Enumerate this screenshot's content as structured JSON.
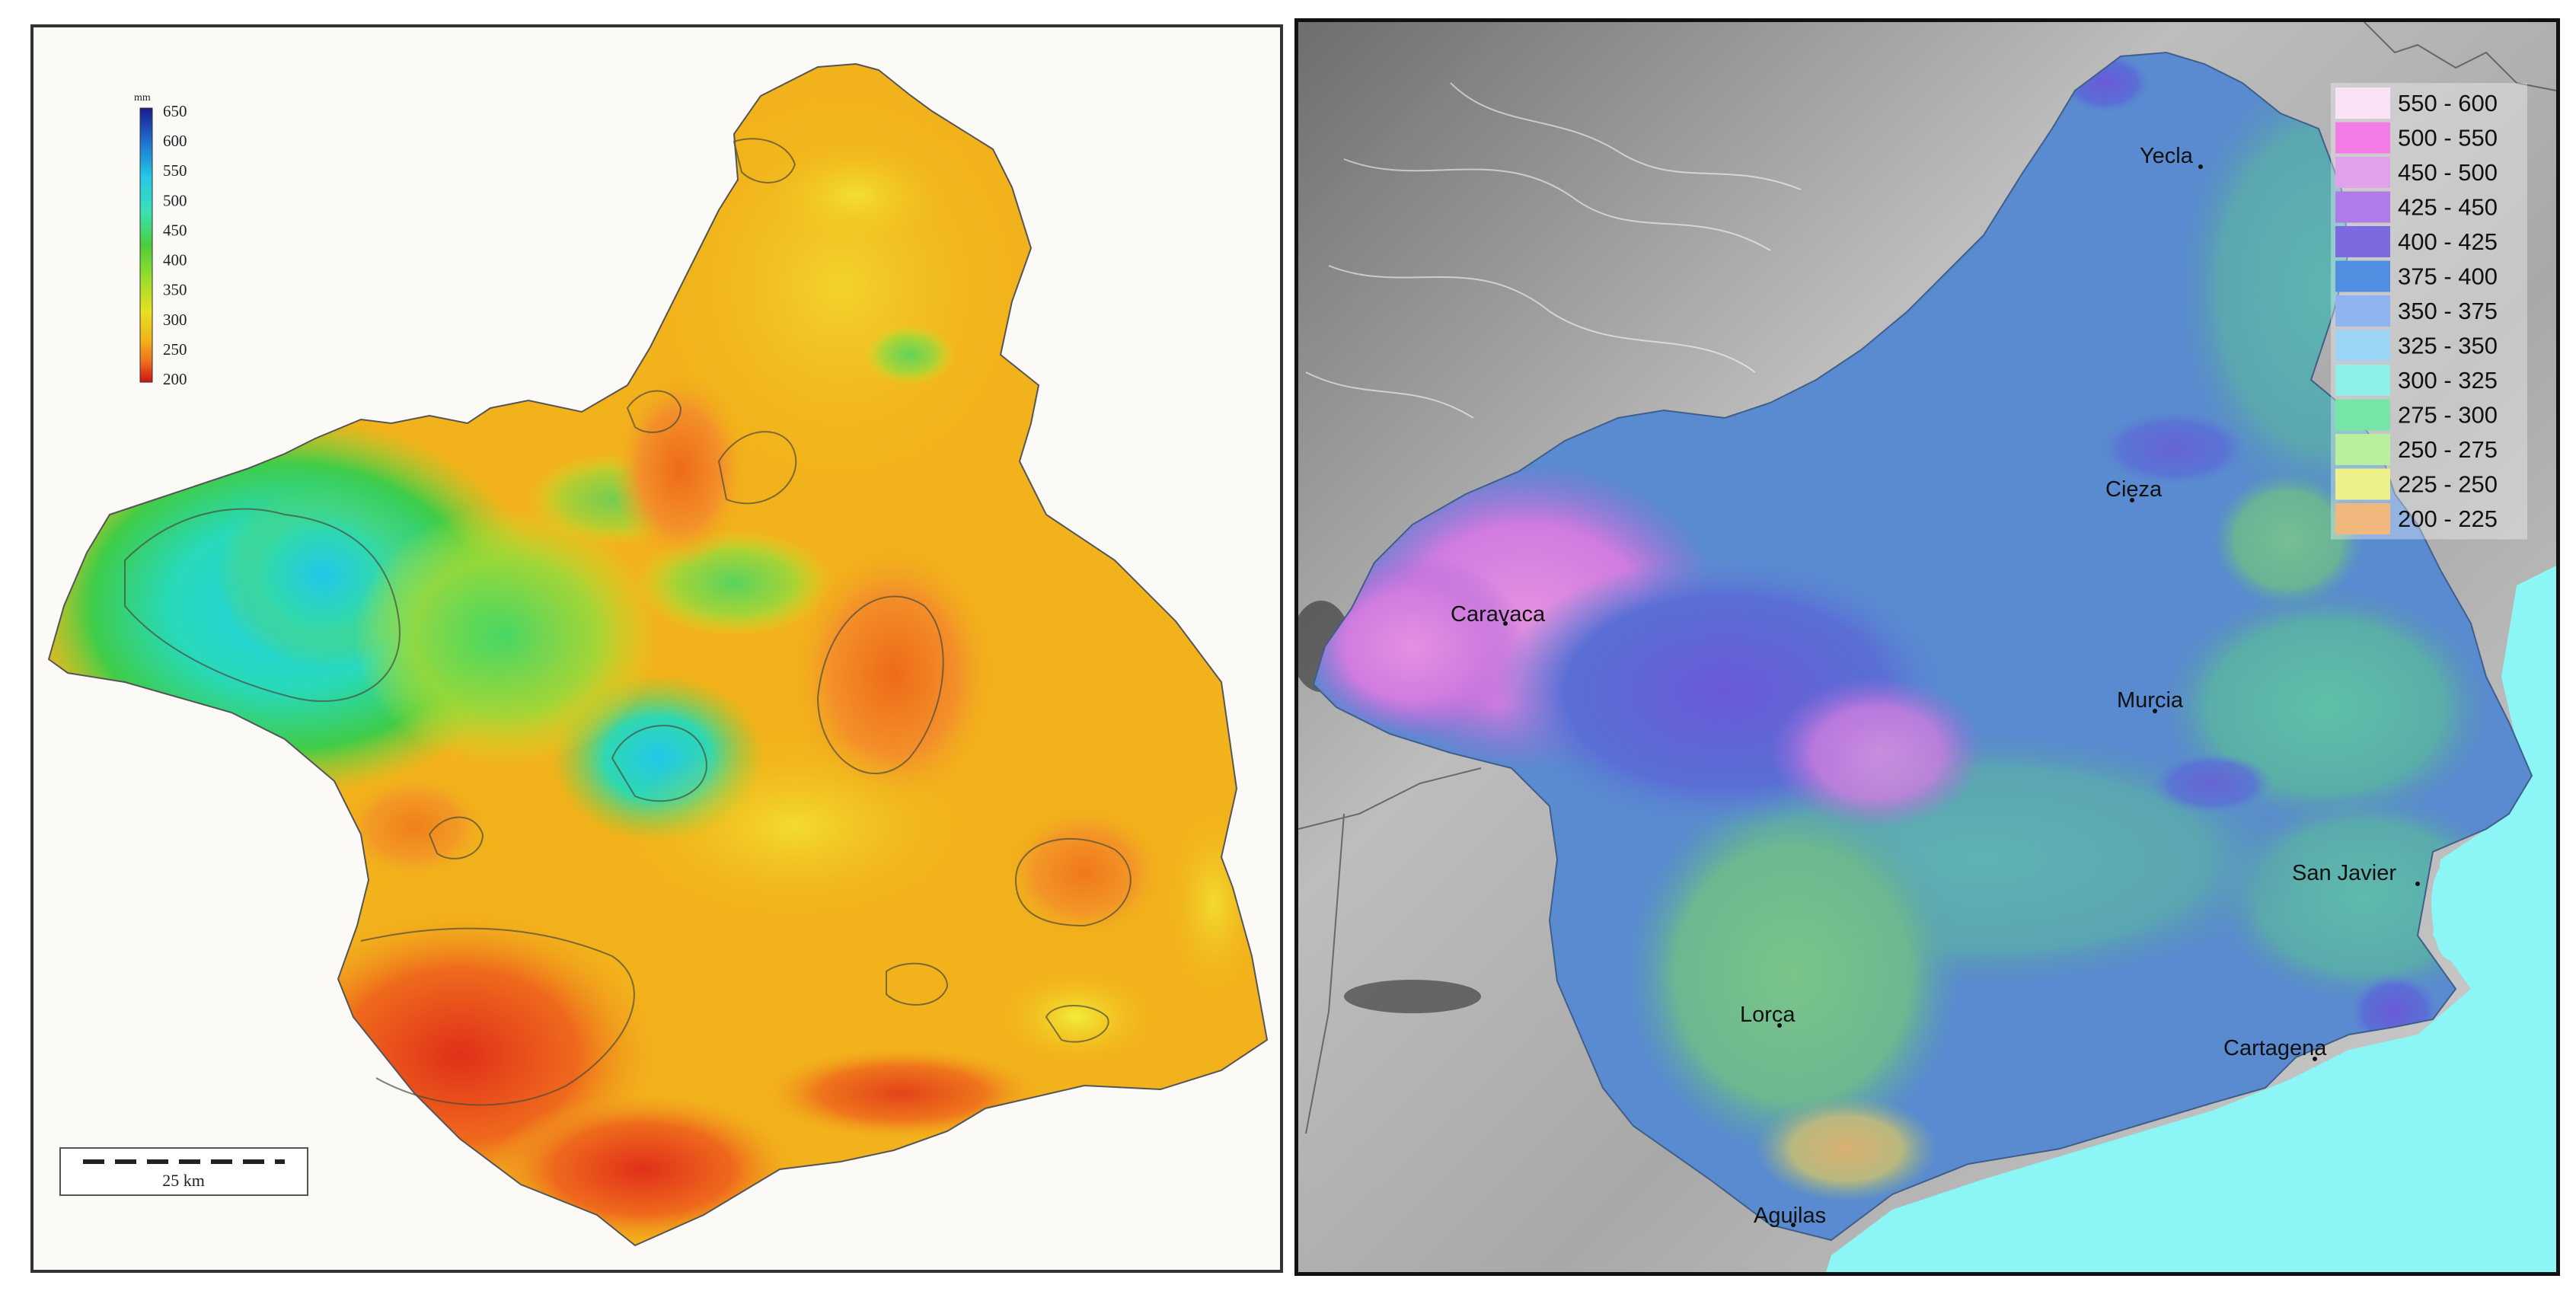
{
  "left_map": {
    "colorbar": {
      "unit": "mm",
      "ticks": [
        "650",
        "600",
        "550",
        "500",
        "450",
        "400",
        "350",
        "300",
        "250",
        "200"
      ],
      "colors": [
        "#1a1a8c",
        "#1f6fd0",
        "#25c7e6",
        "#39e1b6",
        "#4ccd3a",
        "#9bdc2e",
        "#e6e21e",
        "#f2b21b",
        "#f06a1a",
        "#c81414"
      ]
    },
    "scale_bar": {
      "label": "25 km"
    }
  },
  "right_map": {
    "cities": [
      "Yecla",
      "Cieza",
      "Caravaca",
      "Murcia",
      "San Javier",
      "Lorca",
      "Cartagena",
      "Aguilas"
    ],
    "legend": [
      {
        "label": "550 - 600",
        "color": "#fbe3f7"
      },
      {
        "label": "500 - 550",
        "color": "#f27be6"
      },
      {
        "label": "450 - 500",
        "color": "#e1a2ea"
      },
      {
        "label": "425 - 450",
        "color": "#b07be8"
      },
      {
        "label": "400 - 425",
        "color": "#7d6ae0"
      },
      {
        "label": "375 - 400",
        "color": "#4f8ee0"
      },
      {
        "label": "350 - 375",
        "color": "#8fb4f0"
      },
      {
        "label": "325 - 350",
        "color": "#9bd4f5"
      },
      {
        "label": "300 - 325",
        "color": "#8ef0e8"
      },
      {
        "label": "275 - 300",
        "color": "#77e5a8"
      },
      {
        "label": "250 - 275",
        "color": "#b8f0a0"
      },
      {
        "label": "225 - 250",
        "color": "#eef08a"
      },
      {
        "label": "200 - 225",
        "color": "#f0b87c"
      }
    ],
    "sea_color": "#8cf5f5"
  }
}
